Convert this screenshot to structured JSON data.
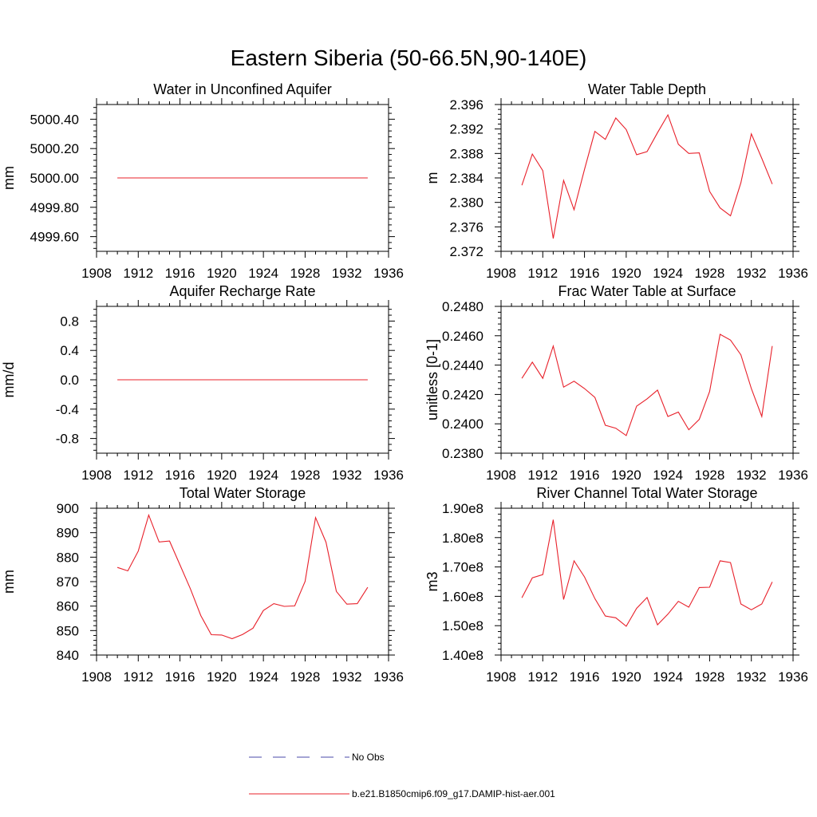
{
  "figure": {
    "title": "Eastern Siberia (50-66.5N,90-140E)"
  },
  "legend": {
    "items": [
      {
        "label": "No Obs",
        "color": "#4a4aa8",
        "dash": true
      },
      {
        "label": "b.e21.B1850cmip6.f09_g17.DAMIP-hist-aer.001",
        "color": "#e8202a",
        "dash": false
      }
    ]
  },
  "colors": {
    "series": "#e8202a",
    "axis": "#000000"
  },
  "chart_data": [
    {
      "type": "line",
      "title": "Water in Unconfined Aquifer",
      "ylabel": "mm",
      "xlim": [
        1908,
        1936
      ],
      "xticks": [
        1908,
        1912,
        1916,
        1920,
        1924,
        1928,
        1932,
        1936
      ],
      "ylim": [
        4999.5,
        5000.5
      ],
      "yticks": [
        4999.6,
        4999.8,
        5000.0,
        5000.2,
        5000.4
      ],
      "ytick_labels": [
        "4999.60",
        "4999.80",
        "5000.00",
        "5000.20",
        "5000.40"
      ],
      "x": [
        1910,
        1934
      ],
      "values": [
        5000.0,
        5000.0
      ]
    },
    {
      "type": "line",
      "title": "Water Table Depth",
      "ylabel": "m",
      "xlim": [
        1908,
        1936
      ],
      "xticks": [
        1908,
        1912,
        1916,
        1920,
        1924,
        1928,
        1932,
        1936
      ],
      "ylim": [
        2.372,
        2.396
      ],
      "yticks": [
        2.372,
        2.376,
        2.38,
        2.384,
        2.388,
        2.392,
        2.396
      ],
      "ytick_labels": [
        "2.372",
        "2.376",
        "2.380",
        "2.384",
        "2.388",
        "2.392",
        "2.396"
      ],
      "x": [
        1910,
        1911,
        1912,
        1913,
        1914,
        1915,
        1916,
        1917,
        1918,
        1919,
        1920,
        1921,
        1922,
        1923,
        1924,
        1925,
        1926,
        1927,
        1928,
        1929,
        1930,
        1931,
        1932,
        1933,
        1934
      ],
      "values": [
        2.3828,
        2.3879,
        2.3852,
        2.3741,
        2.3836,
        2.3788,
        2.3854,
        2.3916,
        2.3903,
        2.3938,
        2.3919,
        2.3878,
        2.3883,
        2.3914,
        2.3943,
        2.3895,
        2.388,
        2.3881,
        2.3818,
        2.3791,
        2.3778,
        2.3832,
        2.3912,
        2.3872,
        2.383
      ]
    },
    {
      "type": "line",
      "title": "Aquifer Recharge Rate",
      "ylabel": "mm/d",
      "xlim": [
        1908,
        1936
      ],
      "xticks": [
        1908,
        1912,
        1916,
        1920,
        1924,
        1928,
        1932,
        1936
      ],
      "ylim": [
        -1.0,
        1.0
      ],
      "yticks": [
        -0.8,
        -0.4,
        0.0,
        0.4,
        0.8
      ],
      "ytick_labels": [
        "-0.8",
        "-0.4",
        "0.0",
        "0.4",
        "0.8"
      ],
      "x": [
        1910,
        1934
      ],
      "values": [
        0.0,
        0.0
      ]
    },
    {
      "type": "line",
      "title": "Frac Water Table at Surface",
      "ylabel": "unitless [0-1]",
      "xlim": [
        1908,
        1936
      ],
      "xticks": [
        1908,
        1912,
        1916,
        1920,
        1924,
        1928,
        1932,
        1936
      ],
      "ylim": [
        0.238,
        0.248
      ],
      "yticks": [
        0.238,
        0.24,
        0.242,
        0.244,
        0.246,
        0.248
      ],
      "ytick_labels": [
        "0.2380",
        "0.2400",
        "0.2420",
        "0.2440",
        "0.2460",
        "0.2480"
      ],
      "x": [
        1910,
        1911,
        1912,
        1913,
        1914,
        1915,
        1916,
        1917,
        1918,
        1919,
        1920,
        1921,
        1922,
        1923,
        1924,
        1925,
        1926,
        1927,
        1928,
        1929,
        1930,
        1931,
        1932,
        1933,
        1934
      ],
      "values": [
        0.2431,
        0.2442,
        0.2431,
        0.2453,
        0.2425,
        0.2429,
        0.2424,
        0.2418,
        0.2399,
        0.2397,
        0.2392,
        0.2412,
        0.2417,
        0.2423,
        0.2405,
        0.2408,
        0.2396,
        0.2403,
        0.2422,
        0.2461,
        0.2457,
        0.2447,
        0.2424,
        0.2405,
        0.2453
      ]
    },
    {
      "type": "line",
      "title": "Total Water Storage",
      "ylabel": "mm",
      "xlim": [
        1908,
        1936
      ],
      "xticks": [
        1908,
        1912,
        1916,
        1920,
        1924,
        1928,
        1932,
        1936
      ],
      "ylim": [
        840,
        900
      ],
      "yticks": [
        840,
        850,
        860,
        870,
        880,
        890,
        900
      ],
      "ytick_labels": [
        "840",
        "850",
        "860",
        "870",
        "880",
        "890",
        "900"
      ],
      "x": [
        1910,
        1911,
        1912,
        1913,
        1914,
        1915,
        1916,
        1917,
        1918,
        1919,
        1920,
        1921,
        1922,
        1923,
        1924,
        1925,
        1926,
        1927,
        1928,
        1929,
        1930,
        1931,
        1932,
        1933,
        1934
      ],
      "values": [
        875.8,
        874.4,
        882.5,
        897.2,
        886.2,
        886.6,
        876.8,
        867.1,
        856.1,
        848.3,
        848.2,
        846.7,
        848.4,
        851.0,
        858.2,
        861.0,
        859.9,
        860.1,
        870.1,
        896.2,
        886.1,
        866.0,
        860.8,
        861.0,
        867.7
      ]
    },
    {
      "type": "line",
      "title": "River Channel Total Water Storage",
      "ylabel": "m3",
      "xlim": [
        1908,
        1936
      ],
      "xticks": [
        1908,
        1912,
        1916,
        1920,
        1924,
        1928,
        1932,
        1936
      ],
      "ylim": [
        140000000,
        190000000
      ],
      "yticks": [
        140000000,
        150000000,
        160000000,
        170000000,
        180000000,
        190000000
      ],
      "ytick_labels": [
        "1.40e8",
        "1.50e8",
        "1.60e8",
        "1.70e8",
        "1.80e8",
        "1.90e8"
      ],
      "x": [
        1910,
        1911,
        1912,
        1913,
        1914,
        1915,
        1916,
        1917,
        1918,
        1919,
        1920,
        1921,
        1922,
        1923,
        1924,
        1925,
        1926,
        1927,
        1928,
        1929,
        1930,
        1931,
        1932,
        1933,
        1934
      ],
      "values": [
        159500000,
        166300000,
        167400000,
        186100000,
        158900000,
        172100000,
        166600000,
        159200000,
        153300000,
        152700000,
        149800000,
        155900000,
        159600000,
        150300000,
        153900000,
        158300000,
        156300000,
        163000000,
        163100000,
        172100000,
        171500000,
        157400000,
        155400000,
        157400000,
        164900000
      ]
    }
  ]
}
